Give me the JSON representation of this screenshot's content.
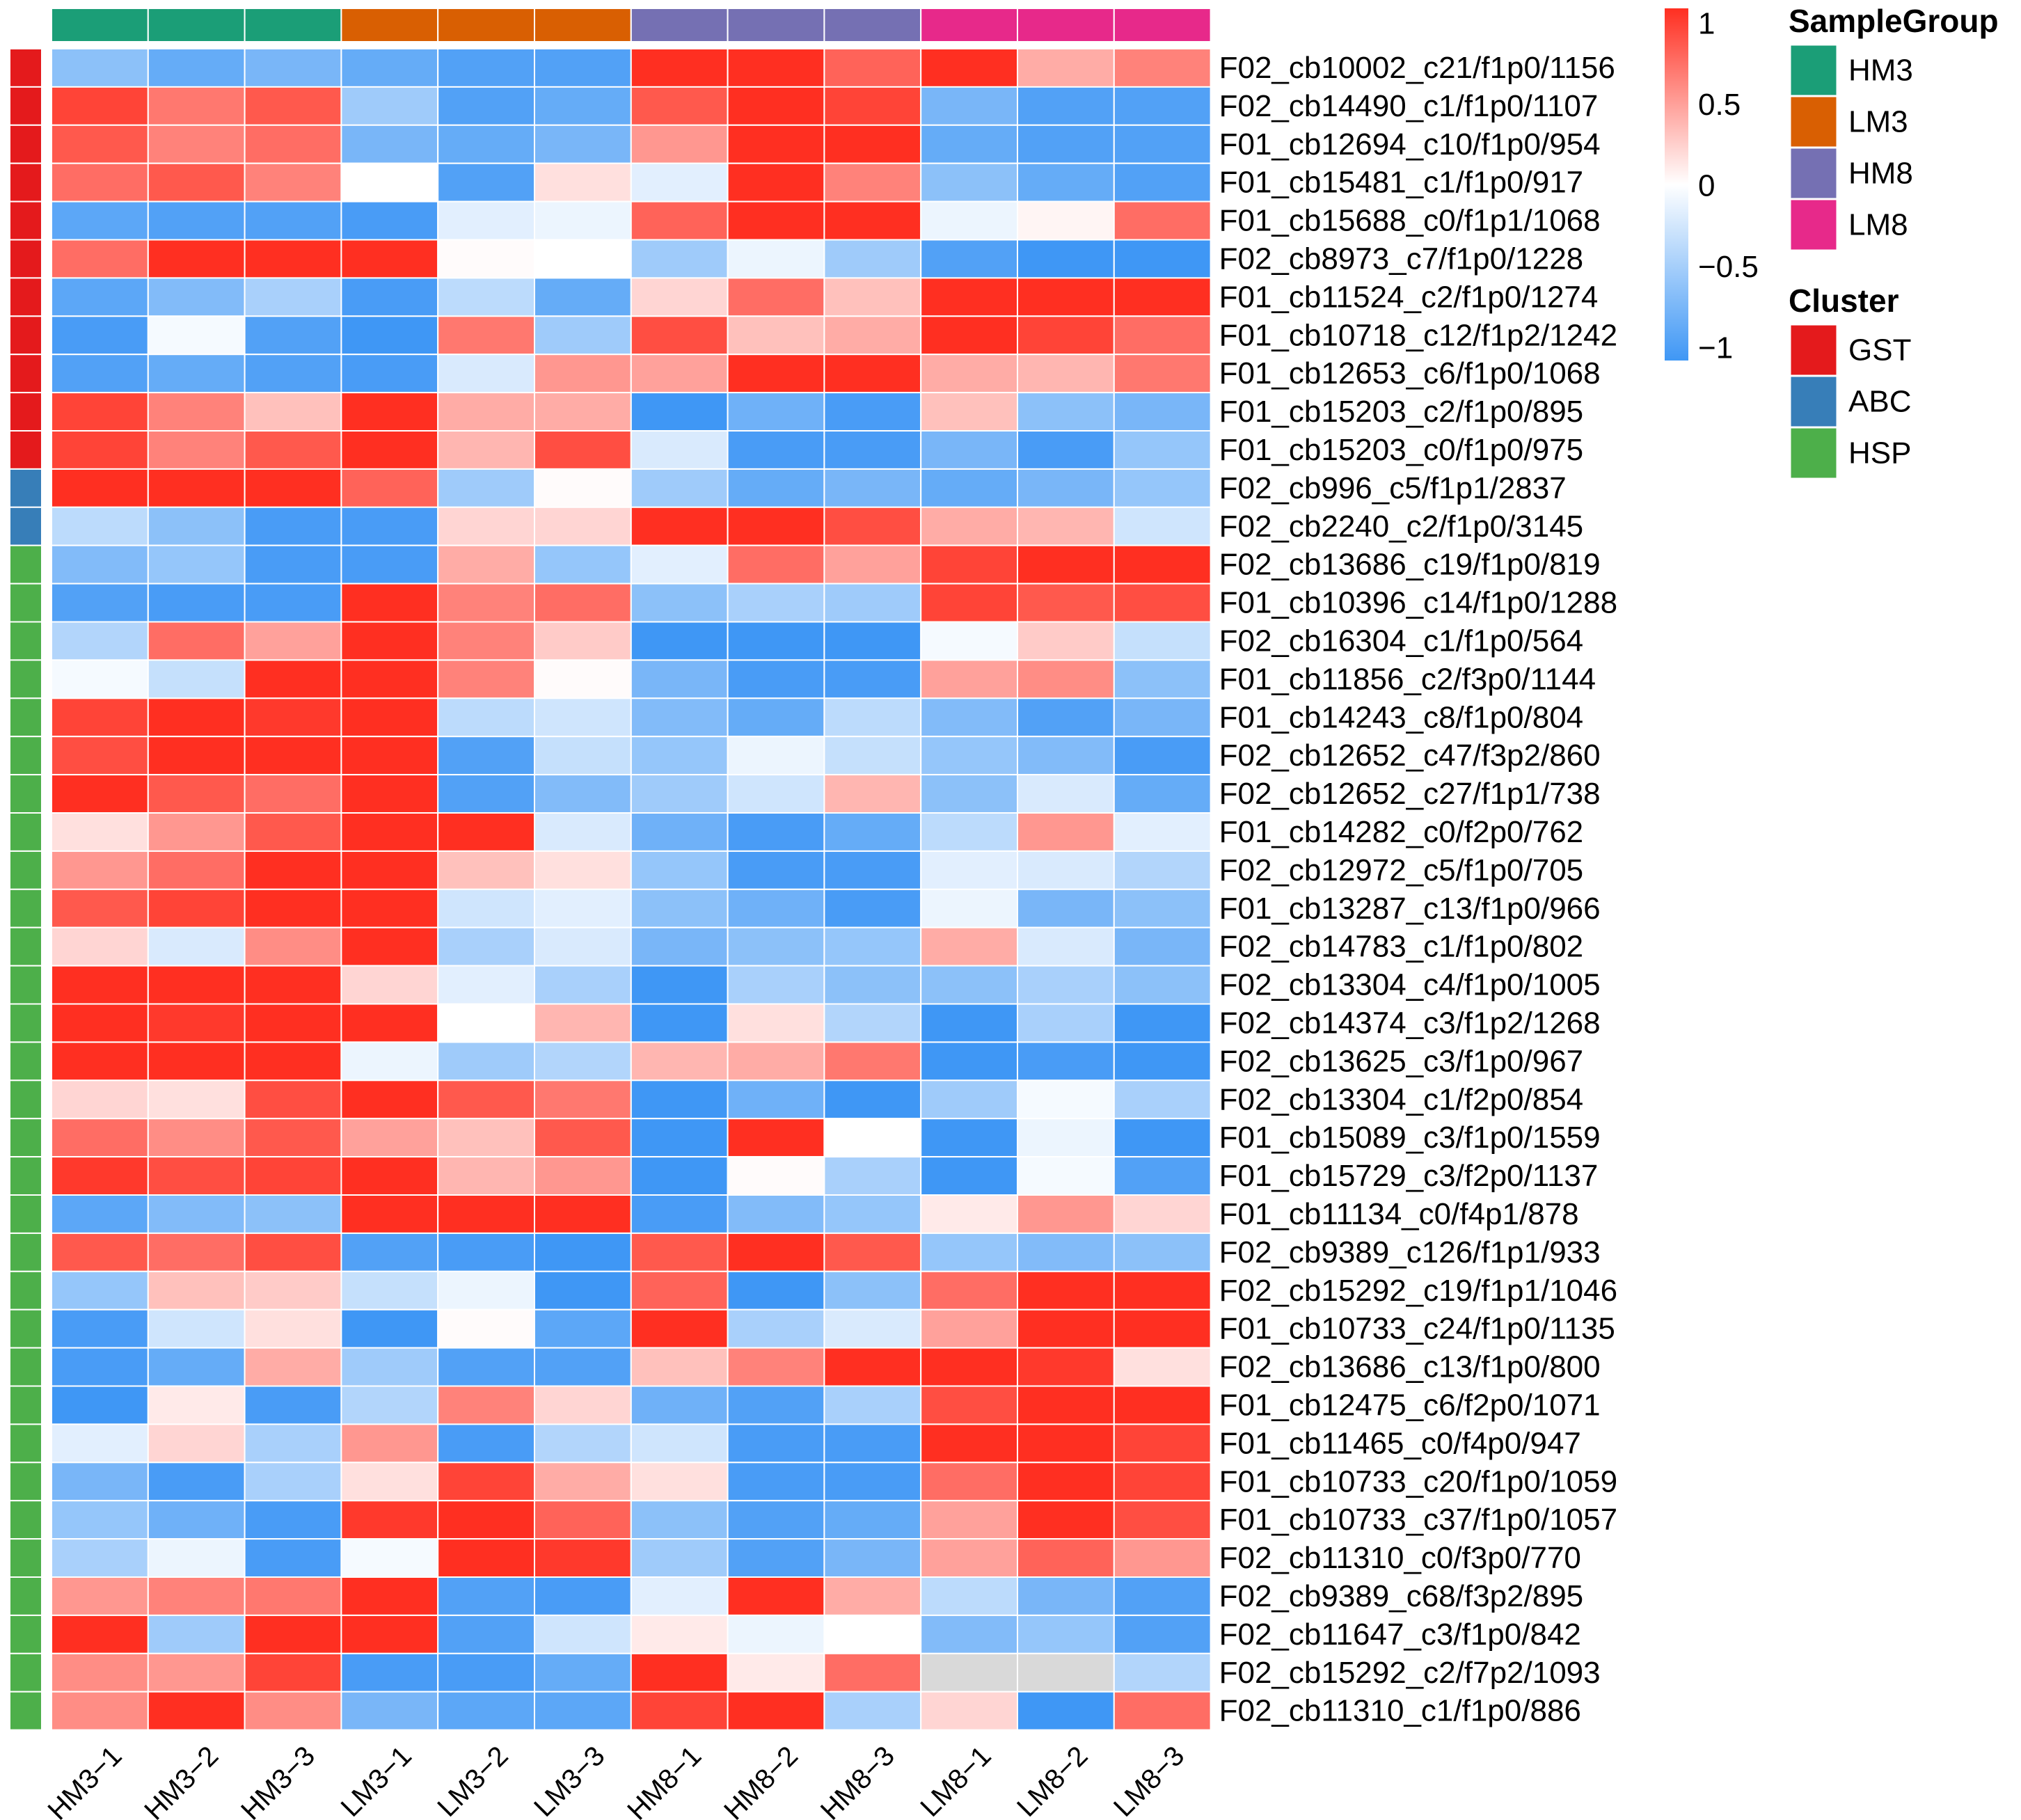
{
  "chart_data": {
    "type": "heatmap",
    "colormap": {
      "low": "#3f97f5",
      "mid": "#ffffff",
      "high": "#ff2f21",
      "na": "#d9d9d9",
      "min": -1,
      "max": 1
    },
    "scale_ticks": [
      {
        "value": 1,
        "label": "1"
      },
      {
        "value": 0.5,
        "label": "0.5"
      },
      {
        "value": 0,
        "label": "0"
      },
      {
        "value": -0.5,
        "label": "−0.5"
      },
      {
        "value": -1,
        "label": "−1"
      }
    ],
    "columns": [
      "HM3−1",
      "HM3−2",
      "HM3−3",
      "LM3−1",
      "LM3−2",
      "LM3−3",
      "HM8−1",
      "HM8−2",
      "HM8−3",
      "LM8−1",
      "LM8−2",
      "LM8−3"
    ],
    "column_groups": [
      "HM3",
      "HM3",
      "HM3",
      "LM3",
      "LM3",
      "LM3",
      "HM8",
      "HM8",
      "HM8",
      "LM8",
      "LM8",
      "LM8"
    ],
    "rows": [
      {
        "label": "F02_cb10002_c21/f1p0/1156",
        "cluster": "GST",
        "values": [
          -0.6,
          -0.8,
          -0.7,
          -0.8,
          -0.9,
          -0.9,
          1.0,
          1.0,
          0.75,
          1.0,
          0.4,
          0.6
        ]
      },
      {
        "label": "F02_cb14490_c1/f1p0/1107",
        "cluster": "GST",
        "values": [
          0.9,
          0.65,
          0.8,
          -0.5,
          -0.9,
          -0.8,
          0.8,
          1.0,
          0.9,
          -0.7,
          -0.9,
          -0.9
        ]
      },
      {
        "label": "F01_cb12694_c10/f1p0/954",
        "cluster": "GST",
        "values": [
          0.8,
          0.6,
          0.7,
          -0.7,
          -0.8,
          -0.7,
          0.5,
          1.0,
          1.0,
          -0.8,
          -0.9,
          -0.9
        ]
      },
      {
        "label": "F01_cb15481_c1/f1p0/917",
        "cluster": "GST",
        "values": [
          0.7,
          0.8,
          0.6,
          0.0,
          -0.9,
          0.15,
          -0.15,
          1.0,
          0.6,
          -0.6,
          -0.8,
          -0.9
        ]
      },
      {
        "label": "F01_cb15688_c0/f1p1/1068",
        "cluster": "GST",
        "values": [
          -0.85,
          -0.9,
          -0.9,
          -0.95,
          -0.15,
          -0.1,
          0.75,
          1.0,
          1.0,
          -0.1,
          0.05,
          0.7
        ]
      },
      {
        "label": "F02_cb8973_c7/f1p0/1228",
        "cluster": "GST",
        "values": [
          0.7,
          1.0,
          1.0,
          1.0,
          0.02,
          0.0,
          -0.5,
          -0.1,
          -0.5,
          -0.9,
          -1.0,
          -1.0
        ]
      },
      {
        "label": "F01_cb11524_c2/f1p0/1274",
        "cluster": "GST",
        "values": [
          -0.85,
          -0.65,
          -0.45,
          -0.95,
          -0.35,
          -0.8,
          0.2,
          0.7,
          0.3,
          1.0,
          1.0,
          1.0
        ]
      },
      {
        "label": "F01_cb10718_c12/f1p2/1242",
        "cluster": "GST",
        "values": [
          -0.95,
          -0.05,
          -0.9,
          -1.0,
          0.65,
          -0.5,
          0.85,
          0.3,
          0.4,
          1.0,
          0.9,
          0.7
        ]
      },
      {
        "label": "F01_cb12653_c6/f1p0/1068",
        "cluster": "GST",
        "values": [
          -0.9,
          -0.8,
          -0.9,
          -0.95,
          -0.2,
          0.5,
          0.45,
          1.0,
          1.0,
          0.4,
          0.35,
          0.65
        ]
      },
      {
        "label": "F01_cb15203_c2/f1p0/895",
        "cluster": "GST",
        "values": [
          0.9,
          0.6,
          0.3,
          1.0,
          0.4,
          0.4,
          -1.0,
          -0.75,
          -0.95,
          0.3,
          -0.6,
          -0.7
        ]
      },
      {
        "label": "F01_cb15203_c0/f1p0/975",
        "cluster": "GST",
        "values": [
          0.9,
          0.6,
          0.8,
          1.0,
          0.35,
          0.85,
          -0.2,
          -0.95,
          -0.95,
          -0.7,
          -0.95,
          -0.55
        ]
      },
      {
        "label": "F02_cb996_c5/f1p1/2837",
        "cluster": "ABC",
        "values": [
          1.0,
          1.0,
          1.0,
          0.75,
          -0.5,
          0.02,
          -0.5,
          -0.8,
          -0.7,
          -0.8,
          -0.7,
          -0.55
        ]
      },
      {
        "label": "F02_cb2240_c2/f1p0/3145",
        "cluster": "ABC",
        "values": [
          -0.35,
          -0.6,
          -0.95,
          -0.95,
          0.2,
          0.2,
          1.0,
          1.0,
          0.85,
          0.4,
          0.35,
          -0.25
        ]
      },
      {
        "label": "F02_cb13686_c19/f1p0/819",
        "cluster": "HSP",
        "values": [
          -0.65,
          -0.55,
          -0.95,
          -0.95,
          0.4,
          -0.55,
          -0.15,
          0.7,
          0.45,
          0.9,
          1.0,
          1.0
        ]
      },
      {
        "label": "F01_cb10396_c14/f1p0/1288",
        "cluster": "HSP",
        "values": [
          -0.9,
          -0.95,
          -0.95,
          1.0,
          0.6,
          0.7,
          -0.6,
          -0.45,
          -0.5,
          0.9,
          0.8,
          0.85
        ]
      },
      {
        "label": "F02_cb16304_c1/f1p0/564",
        "cluster": "HSP",
        "values": [
          -0.4,
          0.7,
          0.45,
          1.0,
          0.6,
          0.25,
          -1.0,
          -1.0,
          -1.0,
          -0.05,
          0.25,
          -0.3
        ]
      },
      {
        "label": "F01_cb11856_c2/f3p0/1144",
        "cluster": "HSP",
        "values": [
          -0.05,
          -0.3,
          1.0,
          1.0,
          0.6,
          0.02,
          -0.7,
          -0.95,
          -0.95,
          0.45,
          0.55,
          -0.6
        ]
      },
      {
        "label": "F01_cb14243_c8/f1p0/804",
        "cluster": "HSP",
        "values": [
          0.9,
          1.0,
          0.95,
          1.0,
          -0.35,
          -0.25,
          -0.65,
          -0.8,
          -0.35,
          -0.65,
          -0.9,
          -0.7
        ]
      },
      {
        "label": "F02_cb12652_c47/f3p2/860",
        "cluster": "HSP",
        "values": [
          0.85,
          1.0,
          1.0,
          1.0,
          -0.9,
          -0.3,
          -0.55,
          -0.1,
          -0.3,
          -0.55,
          -0.65,
          -0.95
        ]
      },
      {
        "label": "F02_cb12652_c27/f1p1/738",
        "cluster": "HSP",
        "values": [
          1.0,
          0.8,
          0.7,
          1.0,
          -0.9,
          -0.65,
          -0.5,
          -0.25,
          0.35,
          -0.6,
          -0.2,
          -0.8
        ]
      },
      {
        "label": "F01_cb14282_c0/f2p0/762",
        "cluster": "HSP",
        "values": [
          0.15,
          0.5,
          0.8,
          1.0,
          1.0,
          -0.2,
          -0.75,
          -0.95,
          -0.8,
          -0.35,
          0.5,
          -0.15
        ]
      },
      {
        "label": "F02_cb12972_c5/f1p0/705",
        "cluster": "HSP",
        "values": [
          0.5,
          0.7,
          1.0,
          1.0,
          0.3,
          0.15,
          -0.55,
          -0.95,
          -0.95,
          -0.15,
          -0.2,
          -0.4
        ]
      },
      {
        "label": "F01_cb13287_c13/f1p0/966",
        "cluster": "HSP",
        "values": [
          0.8,
          0.9,
          1.0,
          1.0,
          -0.25,
          -0.15,
          -0.6,
          -0.75,
          -0.95,
          -0.1,
          -0.7,
          -0.6
        ]
      },
      {
        "label": "F02_cb14783_c1/f1p0/802",
        "cluster": "HSP",
        "values": [
          0.2,
          -0.2,
          0.55,
          1.0,
          -0.45,
          -0.2,
          -0.7,
          -0.6,
          -0.55,
          0.4,
          -0.2,
          -0.7
        ]
      },
      {
        "label": "F02_cb13304_c4/f1p0/1005",
        "cluster": "HSP",
        "values": [
          1.0,
          1.0,
          1.0,
          0.2,
          -0.15,
          -0.45,
          -1.0,
          -0.45,
          -0.6,
          -0.6,
          -0.45,
          -0.6
        ]
      },
      {
        "label": "F02_cb14374_c3/f1p2/1268",
        "cluster": "HSP",
        "values": [
          1.0,
          0.95,
          1.0,
          1.0,
          0.0,
          0.35,
          -1.0,
          0.15,
          -0.4,
          -1.0,
          -0.45,
          -1.0
        ]
      },
      {
        "label": "F02_cb13625_c3/f1p0/967",
        "cluster": "HSP",
        "values": [
          1.0,
          1.0,
          1.0,
          -0.1,
          -0.5,
          -0.4,
          0.35,
          0.4,
          0.65,
          -1.0,
          -0.95,
          -1.0
        ]
      },
      {
        "label": "F02_cb13304_c1/f2p0/854",
        "cluster": "HSP",
        "values": [
          0.2,
          0.15,
          0.85,
          1.0,
          0.8,
          0.65,
          -1.0,
          -0.75,
          -1.0,
          -0.5,
          -0.05,
          -0.45
        ]
      },
      {
        "label": "F01_cb15089_c3/f1p0/1559",
        "cluster": "HSP",
        "values": [
          0.7,
          0.55,
          0.8,
          0.45,
          0.3,
          0.8,
          -1.0,
          1.0,
          0.0,
          -1.0,
          -0.1,
          -1.0
        ]
      },
      {
        "label": "F01_cb15729_c3/f2p0/1137",
        "cluster": "HSP",
        "values": [
          0.95,
          0.85,
          0.9,
          1.0,
          0.35,
          0.5,
          -1.0,
          0.02,
          -0.45,
          -1.0,
          -0.05,
          -0.9
        ]
      },
      {
        "label": "F01_cb11134_c0/f4p1/878",
        "cluster": "HSP",
        "values": [
          -0.85,
          -0.65,
          -0.6,
          1.0,
          1.0,
          1.0,
          -0.95,
          -0.65,
          -0.55,
          0.1,
          0.5,
          0.2
        ]
      },
      {
        "label": "F02_cb9389_c126/f1p1/933",
        "cluster": "HSP",
        "values": [
          0.8,
          0.7,
          0.85,
          -0.9,
          -0.95,
          -1.0,
          0.8,
          1.0,
          0.8,
          -0.55,
          -0.65,
          -0.6
        ]
      },
      {
        "label": "F02_cb15292_c19/f1p1/1046",
        "cluster": "HSP",
        "values": [
          -0.55,
          0.3,
          0.25,
          -0.3,
          -0.1,
          -1.0,
          0.75,
          -1.0,
          -0.6,
          0.7,
          1.0,
          1.0
        ]
      },
      {
        "label": "F01_cb10733_c24/f1p0/1135",
        "cluster": "HSP",
        "values": [
          -0.95,
          -0.25,
          0.15,
          -1.0,
          0.02,
          -0.85,
          1.0,
          -0.45,
          -0.2,
          0.45,
          1.0,
          1.0
        ]
      },
      {
        "label": "F02_cb13686_c13/f1p0/800",
        "cluster": "HSP",
        "values": [
          -0.95,
          -0.8,
          0.4,
          -0.5,
          -0.9,
          -0.9,
          0.3,
          0.6,
          1.0,
          1.0,
          0.95,
          0.15
        ]
      },
      {
        "label": "F01_cb12475_c6/f2p0/1071",
        "cluster": "HSP",
        "values": [
          -1.0,
          0.1,
          -0.95,
          -0.4,
          0.6,
          0.2,
          -0.75,
          -0.9,
          -0.45,
          0.85,
          1.0,
          1.0
        ]
      },
      {
        "label": "F01_cb11465_c0/f4p0/947",
        "cluster": "HSP",
        "values": [
          -0.15,
          0.2,
          -0.45,
          0.5,
          -0.95,
          -0.4,
          -0.25,
          -0.95,
          -0.95,
          1.0,
          1.0,
          0.9
        ]
      },
      {
        "label": "F01_cb10733_c20/f1p0/1059",
        "cluster": "HSP",
        "values": [
          -0.7,
          -0.95,
          -0.45,
          0.15,
          0.9,
          0.4,
          0.15,
          -0.95,
          -0.95,
          0.7,
          1.0,
          0.9
        ]
      },
      {
        "label": "F01_cb10733_c37/f1p0/1057",
        "cluster": "HSP",
        "values": [
          -0.55,
          -0.75,
          -0.95,
          0.95,
          1.0,
          0.75,
          -0.6,
          -0.9,
          -0.8,
          0.45,
          1.0,
          0.85
        ]
      },
      {
        "label": "F02_cb11310_c0/f3p0/770",
        "cluster": "HSP",
        "values": [
          -0.45,
          -0.1,
          -0.95,
          -0.05,
          1.0,
          0.95,
          -0.5,
          -0.9,
          -0.7,
          0.45,
          0.75,
          0.5
        ]
      },
      {
        "label": "F02_cb9389_c68/f3p2/895",
        "cluster": "HSP",
        "values": [
          0.5,
          0.6,
          0.65,
          1.0,
          -0.9,
          -0.95,
          -0.15,
          1.0,
          0.4,
          -0.35,
          -0.7,
          -0.9
        ]
      },
      {
        "label": "F02_cb11647_c3/f1p0/842",
        "cluster": "HSP",
        "values": [
          1.0,
          -0.5,
          1.0,
          1.0,
          -0.9,
          -0.25,
          0.1,
          -0.1,
          0.0,
          -0.65,
          -0.55,
          -0.9
        ]
      },
      {
        "label": "F02_cb15292_c2/f7p2/1093",
        "cluster": "HSP",
        "values": [
          0.55,
          0.5,
          0.9,
          -0.95,
          -0.95,
          -0.8,
          1.0,
          0.1,
          0.7,
          null,
          null,
          -0.4
        ]
      },
      {
        "label": "F02_cb11310_c1/f1p0/886",
        "cluster": "HSP",
        "values": [
          0.55,
          1.0,
          0.55,
          -0.7,
          -0.85,
          -0.85,
          0.9,
          1.0,
          -0.45,
          0.2,
          -1.0,
          0.7
        ]
      }
    ],
    "legend_sample_group": {
      "title": "SampleGroup",
      "entries": [
        {
          "name": "HM3",
          "color": "#1b9e77"
        },
        {
          "name": "LM3",
          "color": "#d95f02"
        },
        {
          "name": "HM8",
          "color": "#7570b3"
        },
        {
          "name": "LM8",
          "color": "#e7298a"
        }
      ]
    },
    "legend_cluster": {
      "title": "Cluster",
      "entries": [
        {
          "name": "GST",
          "color": "#e41a1c"
        },
        {
          "name": "ABC",
          "color": "#377eb8"
        },
        {
          "name": "HSP",
          "color": "#4daf4a"
        }
      ]
    }
  }
}
